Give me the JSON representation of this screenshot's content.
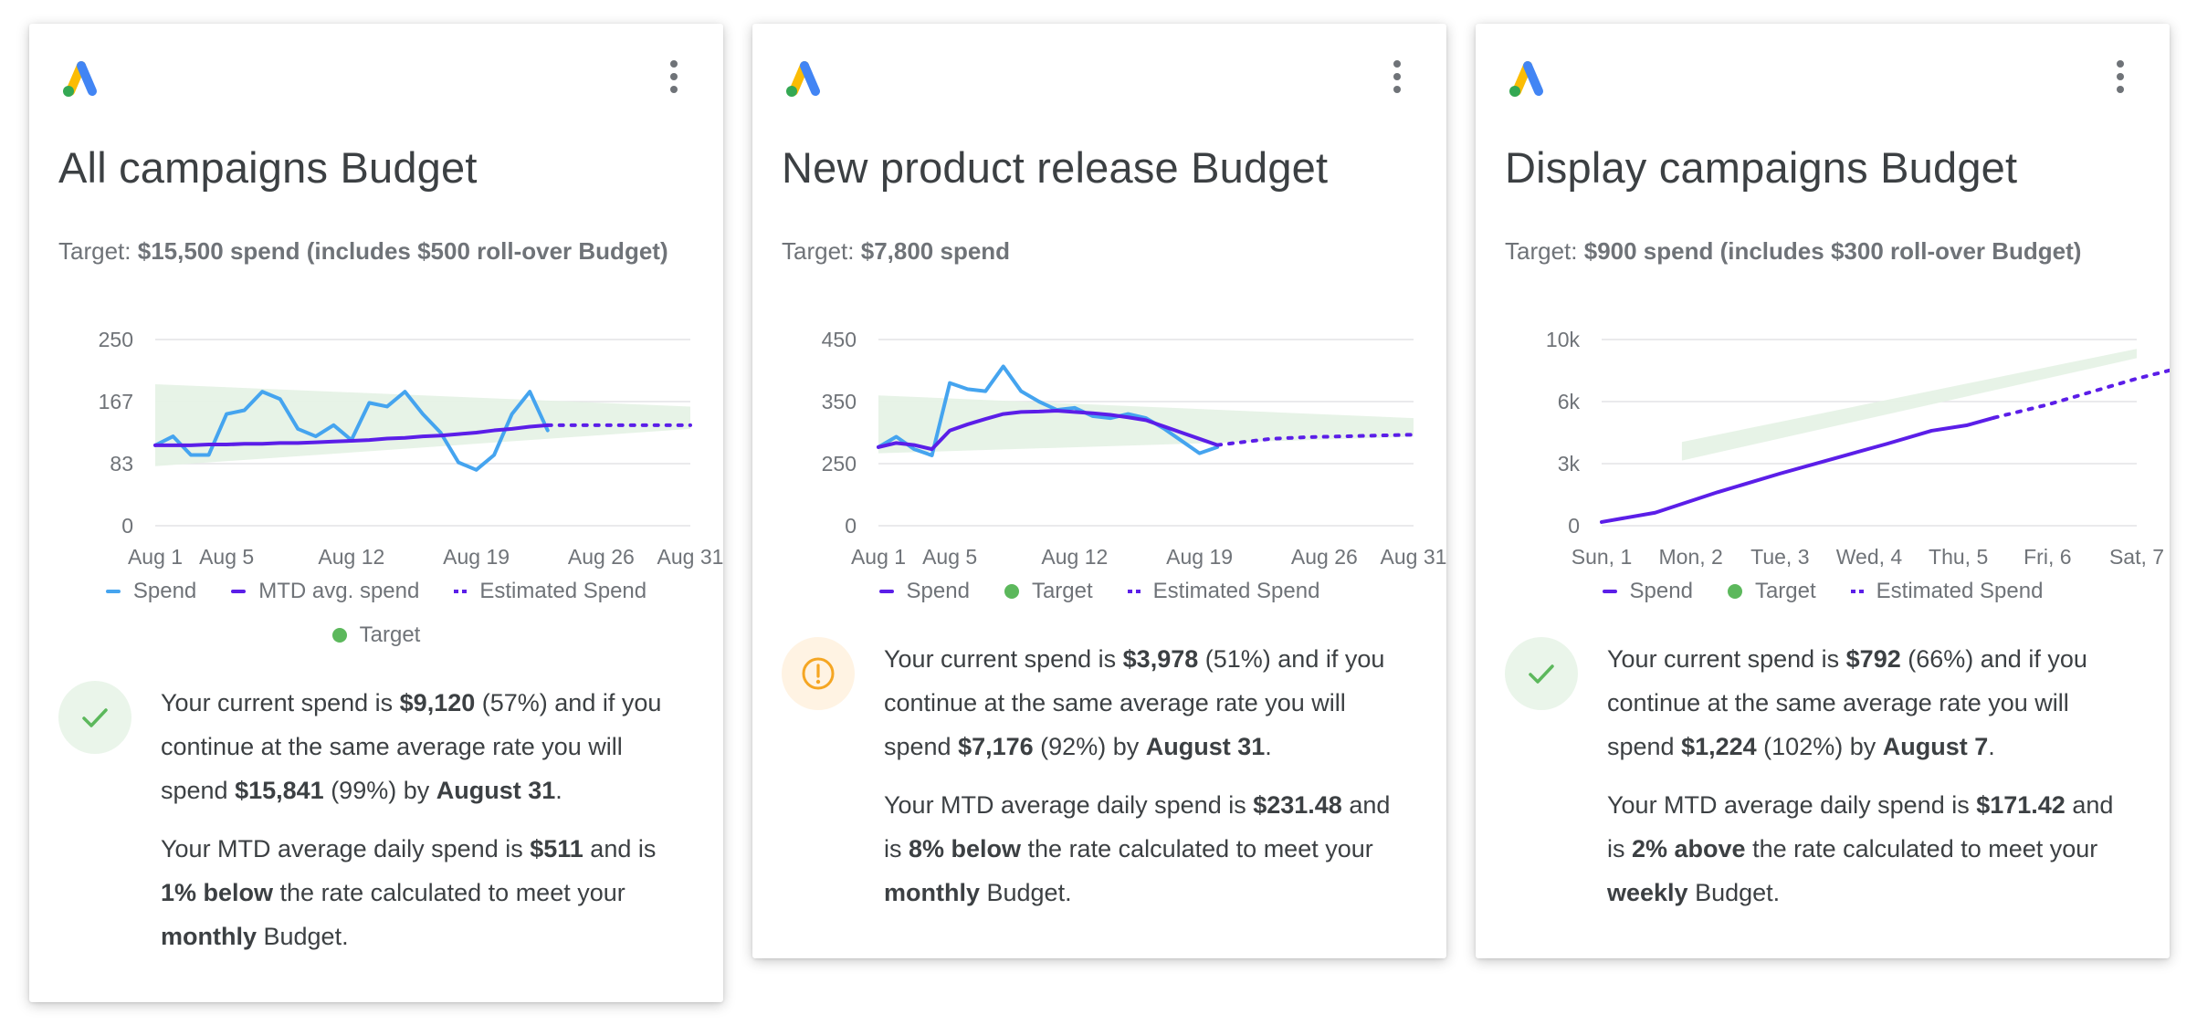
{
  "colors": {
    "spend_blue": "#45a4ef",
    "mtd_purple": "#5b1ee8",
    "target_green": "#5cb85c",
    "band_green": "#e4f2e4",
    "ok_bg": "#eaf5ea",
    "warn_bg": "#fff3e3",
    "warn_orange": "#f5a623",
    "text": "#3c4043",
    "muted": "#6f7378"
  },
  "cards": [
    {
      "icon": "google-ads-logo-icon",
      "title": "All campaigns Budget",
      "target_label": "Target:",
      "target_value": "$15,500 spend (includes $500 roll-over Budget)",
      "status": "on-track",
      "status_icon": "checkmark-icon",
      "legend": {
        "spend": "Spend",
        "mtd": "MTD avg. spend",
        "estimated": "Estimated Spend",
        "target": "Target"
      },
      "summary": {
        "p1_a": "Your current spend is ",
        "current": "$9,120",
        "current_pct": " (57%)",
        "p1_b": " and if you continue at the same average rate you will spend ",
        "projected": "$15,841",
        "projected_pct": " (99%)",
        "p1_c": " by ",
        "date": "August 31",
        "p1_d": ".",
        "p2_a": "Your MTD average daily spend is ",
        "daily": "$511",
        "p2_b": " and is ",
        "rate": "1% below",
        "p2_c": " the rate calculated to meet your ",
        "period": "monthly",
        "p2_d": " Budget."
      }
    },
    {
      "icon": "google-ads-logo-icon",
      "title": "New product release Budget",
      "target_label": "Target:",
      "target_value": "$7,800 spend",
      "status": "warning",
      "status_icon": "exclamation-icon",
      "legend": {
        "spend": "Spend",
        "target": "Target",
        "estimated": "Estimated Spend"
      },
      "summary": {
        "p1_a": "Your current spend is ",
        "current": "$3,978",
        "current_pct": " (51%)",
        "p1_b": " and if you continue at the same average rate you will spend ",
        "projected": "$7,176",
        "projected_pct": " (92%)",
        "p1_c": " by ",
        "date": "August 31",
        "p1_d": ".",
        "p2_a": "Your MTD average daily spend is ",
        "daily": "$231.48",
        "p2_b": " and is ",
        "rate": "8% below",
        "p2_c": " the rate calculated to meet your ",
        "period": "monthly",
        "p2_d": " Budget."
      }
    },
    {
      "icon": "google-ads-logo-icon",
      "title": "Display campaigns Budget",
      "target_label": "Target:",
      "target_value": "$900 spend (includes $300 roll-over Budget)",
      "status": "on-track",
      "status_icon": "checkmark-icon",
      "legend": {
        "spend": "Spend",
        "target": "Target",
        "estimated": "Estimated Spend"
      },
      "summary": {
        "p1_a": "Your current spend is ",
        "current": "$792",
        "current_pct": " (66%)",
        "p1_b": " and if you continue at the same average rate you will spend ",
        "projected": "$1,224",
        "projected_pct": " (102%)",
        "p1_c": " by ",
        "date": "August 7",
        "p1_d": ".",
        "p2_a": "Your MTD average daily spend is ",
        "daily": "$171.42",
        "p2_b": " and is ",
        "rate": "2% above",
        "p2_c": " the rate calculated to meet your ",
        "period": "weekly",
        "p2_d": " Budget."
      }
    }
  ],
  "chart_data": [
    {
      "type": "line",
      "x_tick_labels": [
        "Aug 1",
        "Aug 5",
        "Aug 12",
        "Aug 19",
        "Aug 26",
        "Aug 31"
      ],
      "y_tick_labels": [
        "250",
        "167",
        "83",
        "0"
      ],
      "ylim": [
        0,
        250
      ],
      "grid": true,
      "legend_position": "bottom",
      "series": [
        {
          "name": "Spend",
          "style": "solid",
          "color": "#45a4ef",
          "values": [
            108,
            120,
            95,
            95,
            150,
            155,
            180,
            170,
            130,
            120,
            135,
            115,
            165,
            160,
            180,
            150,
            125,
            85,
            75,
            95,
            150,
            180,
            128
          ]
        },
        {
          "name": "MTD avg. spend",
          "style": "solid",
          "color": "#5b1ee8",
          "values": [
            108,
            108,
            108,
            109,
            109,
            110,
            110,
            111,
            111,
            112,
            113,
            114,
            115,
            117,
            118,
            120,
            121,
            123,
            125,
            128,
            130,
            133,
            135
          ]
        },
        {
          "name": "Estimated Spend",
          "style": "dotted",
          "color": "#5b1ee8",
          "x_range": [
            "Aug 23",
            "Aug 31"
          ],
          "values": [
            135,
            135,
            135,
            135,
            135,
            135,
            135,
            135,
            135
          ]
        }
      ],
      "target_band": {
        "start": [
          80,
          190
        ],
        "end": [
          130,
          160
        ]
      }
    },
    {
      "type": "line",
      "x_tick_labels": [
        "Aug 1",
        "Aug 5",
        "Aug 12",
        "Aug 19",
        "Aug 26",
        "Aug 31"
      ],
      "y_tick_labels": [
        "450",
        "350",
        "250",
        "0"
      ],
      "ylim": [
        0,
        450
      ],
      "grid": true,
      "legend_position": "bottom",
      "series": [
        {
          "name": "Spend",
          "style": "solid",
          "color": "#45a4ef",
          "values": [
            190,
            215,
            185,
            170,
            345,
            330,
            325,
            385,
            325,
            300,
            280,
            285,
            265,
            260,
            270,
            260,
            235,
            205,
            175,
            190
          ]
        },
        {
          "name": "MTD avg. spend",
          "style": "solid",
          "color": "#5b1ee8",
          "values": [
            190,
            200,
            195,
            185,
            230,
            245,
            258,
            270,
            275,
            276,
            278,
            275,
            272,
            268,
            262,
            255,
            240,
            225,
            210,
            195
          ]
        },
        {
          "name": "Estimated Spend",
          "style": "dotted",
          "color": "#5b1ee8",
          "x_range": [
            "Aug 20",
            "Aug 31"
          ],
          "values": [
            195,
            200,
            205,
            210,
            212,
            214,
            215,
            216,
            217,
            218,
            219,
            220
          ]
        }
      ],
      "target_band": {
        "start": [
          175,
          315
        ],
        "end": [
          215,
          260
        ]
      }
    },
    {
      "type": "line",
      "x_tick_labels": [
        "Sun, 1",
        "Mon, 2",
        "Tue, 3",
        "Wed, 4",
        "Thu, 5",
        "Fri, 6",
        "Sat, 7"
      ],
      "y_tick_labels": [
        "10k",
        "6k",
        "3k",
        "0"
      ],
      "ylim": [
        0,
        10000
      ],
      "grid": true,
      "legend_position": "bottom",
      "series": [
        {
          "name": "Spend",
          "style": "solid",
          "color": "#5b1ee8",
          "x": [
            0,
            0.6,
            1.3,
            2,
            2.6,
            3.2,
            3.7,
            4.1,
            4.4
          ],
          "values": [
            200,
            700,
            1800,
            2800,
            3600,
            4400,
            5100,
            5400,
            5800
          ]
        },
        {
          "name": "Estimated Spend",
          "style": "dotted",
          "color": "#5b1ee8",
          "x": [
            4.4,
            5,
            5.5,
            6,
            6.5,
            7
          ],
          "values": [
            5800,
            6500,
            7200,
            7900,
            8500,
            9000
          ]
        }
      ],
      "target_band": {
        "start": [
          3500,
          4500
        ],
        "end": [
          9000,
          9500
        ]
      }
    }
  ]
}
